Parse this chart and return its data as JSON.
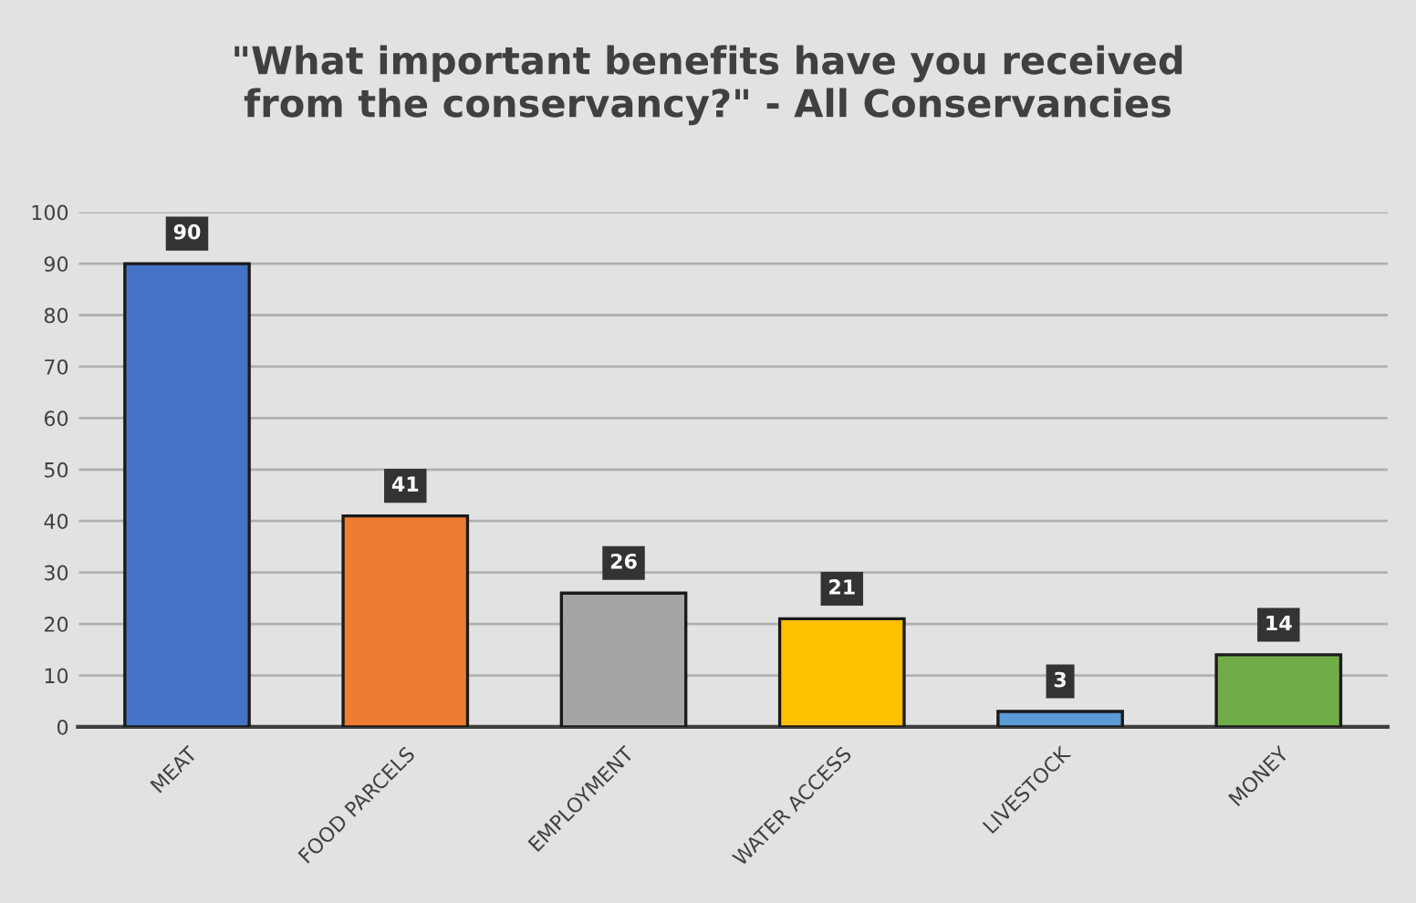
{
  "chart_data": {
    "type": "bar",
    "title": "\"What important benefits have you received\nfrom the conservancy?\" - All Conservancies",
    "categories": [
      "MEAT",
      "FOOD PARCELS",
      "EMPLOYMENT",
      "WATER ACCESS",
      "LIVESTOCK",
      "MONEY"
    ],
    "values": [
      90,
      41,
      26,
      21,
      3,
      14
    ],
    "colors": [
      "#4472c4",
      "#ed7d31",
      "#a5a5a5",
      "#ffc000",
      "#5b9bd5",
      "#70ad47"
    ],
    "ylim": [
      0,
      100
    ],
    "yticks": [
      0,
      10,
      20,
      30,
      40,
      50,
      60,
      70,
      80,
      90,
      100
    ],
    "grid": "y",
    "data_labels": true
  }
}
